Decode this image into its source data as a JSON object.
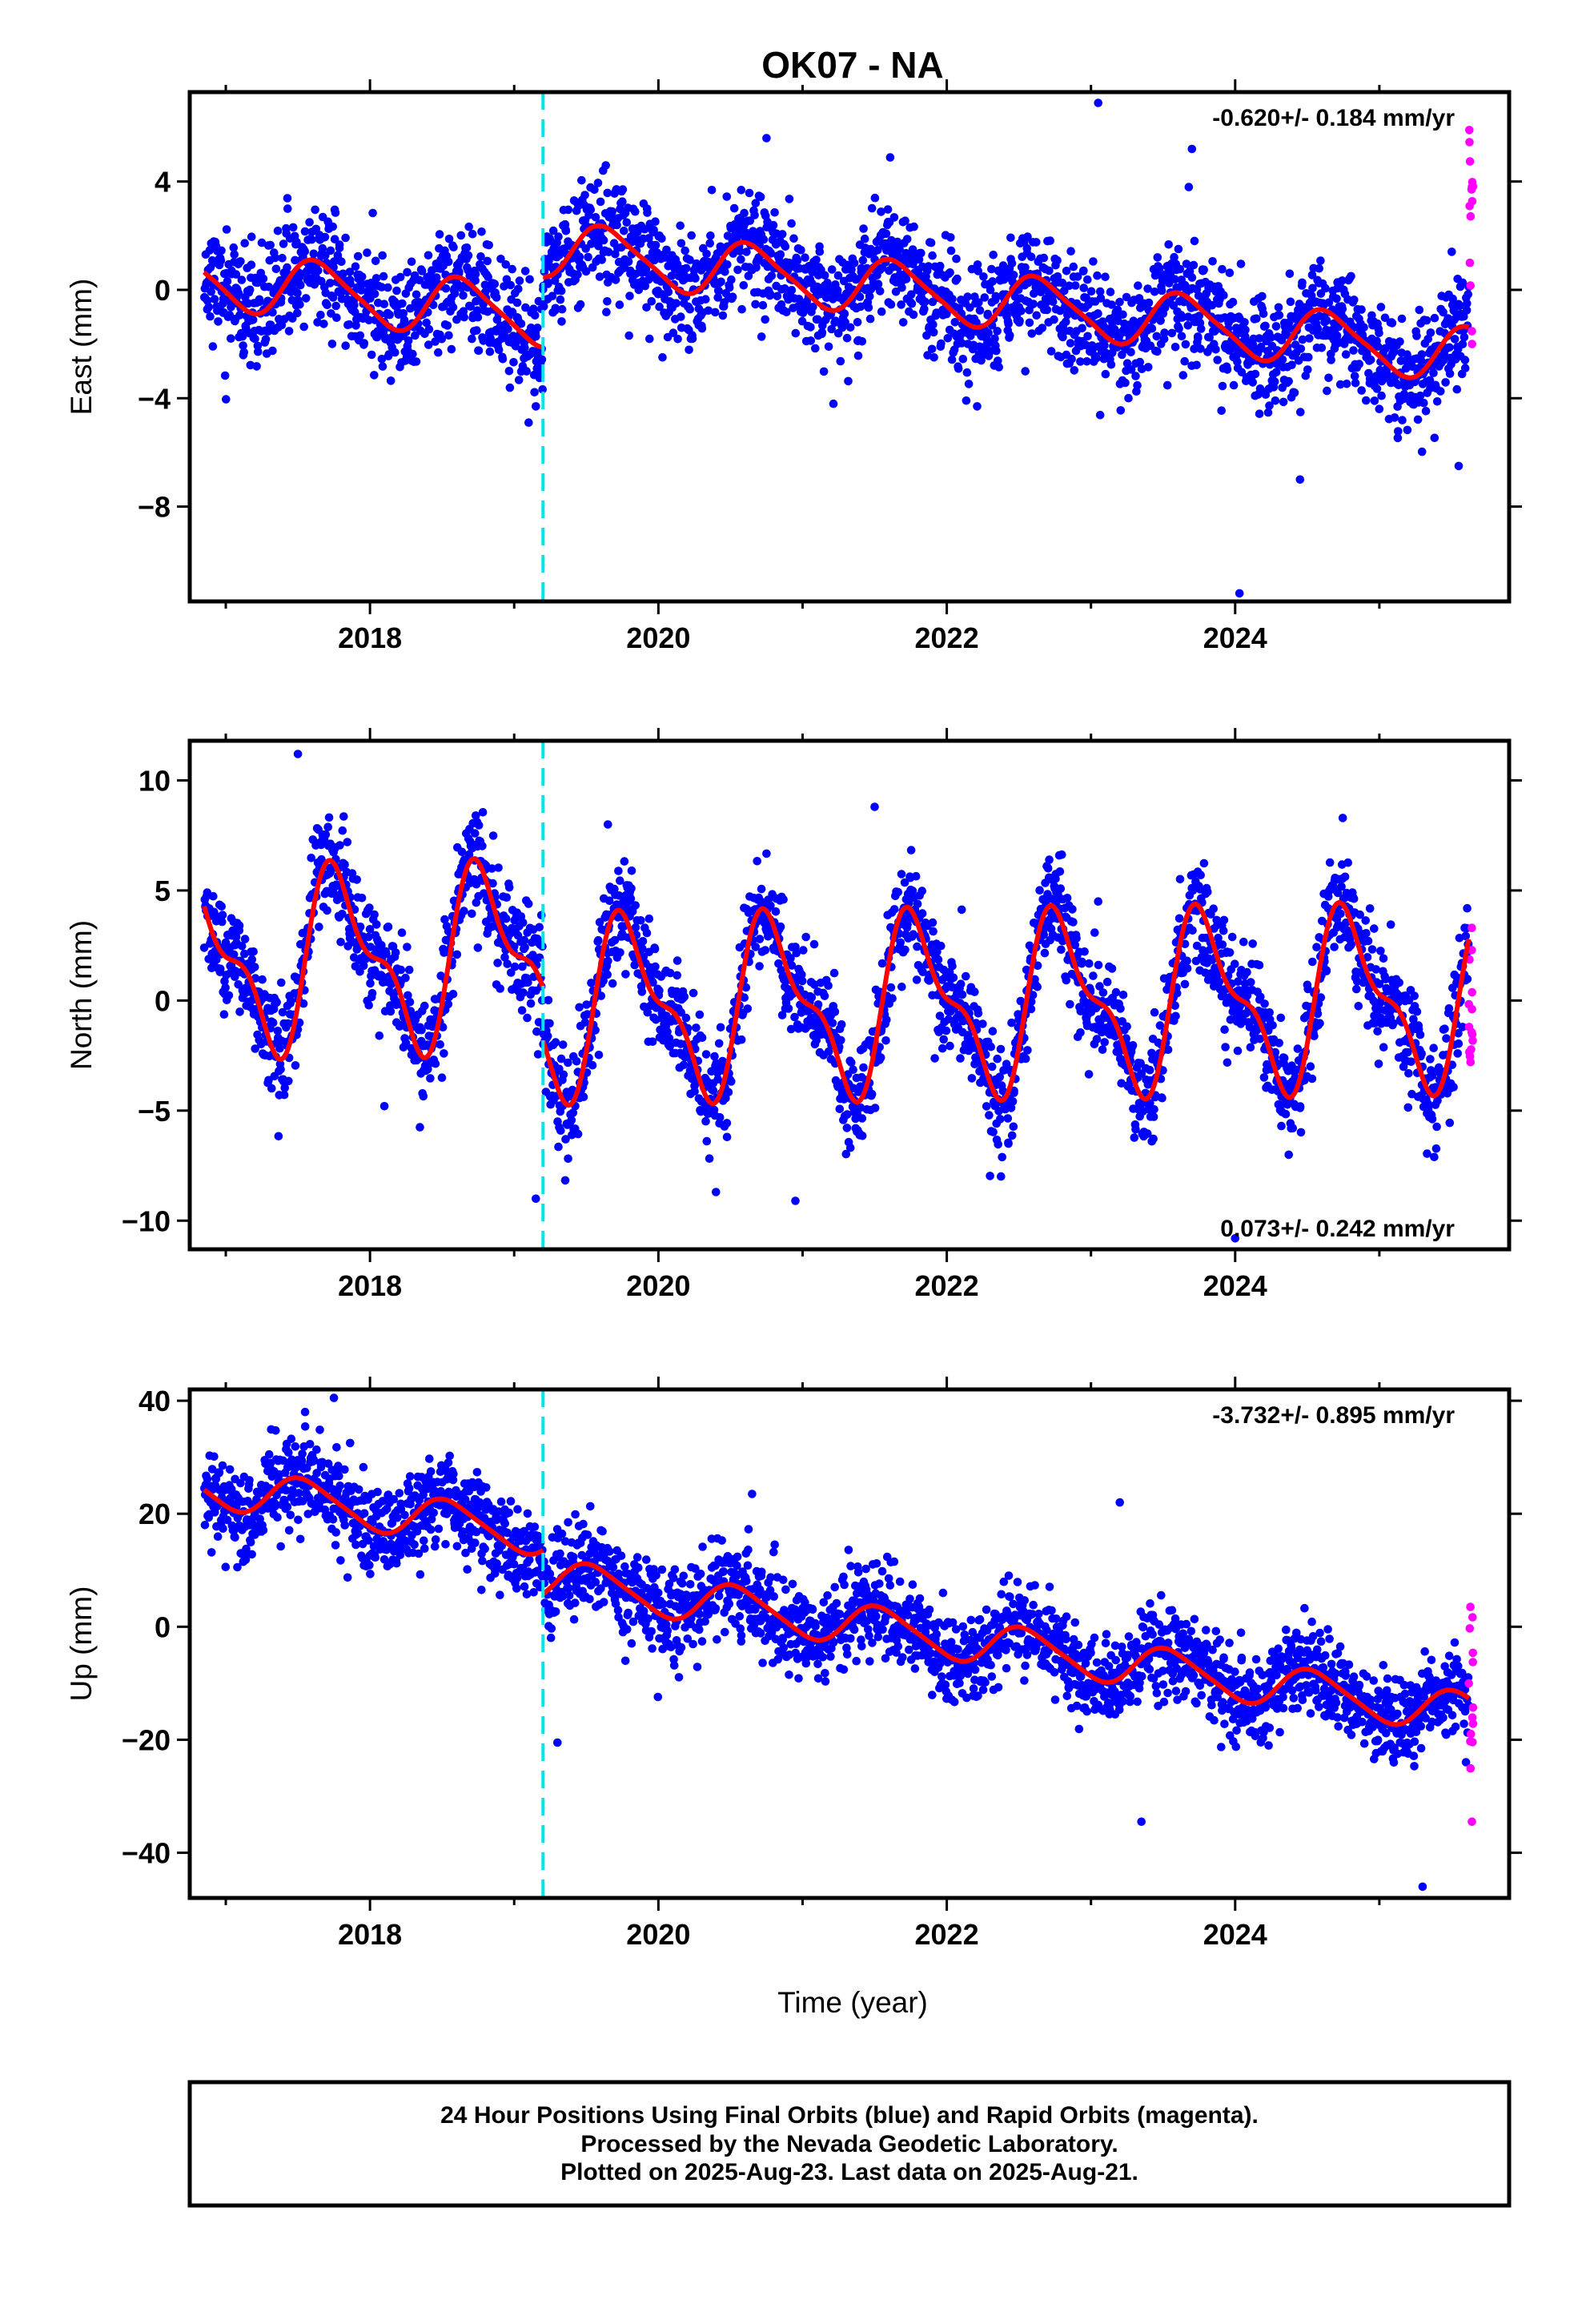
{
  "title": "OK07 - NA",
  "xlabel": "Time (year)",
  "caption": [
    "24 Hour Positions Using Final Orbits (blue) and Rapid Orbits (magenta).",
    "Processed by the Nevada Geodetic Laboratory.",
    "Plotted on 2025-Aug-23. Last data on 2025-Aug-21."
  ],
  "colors": {
    "final_orbits": "#0000ff",
    "rapid_orbits": "#ff00ff",
    "model": "#ff0000",
    "equipment_change": "#00e5ee"
  },
  "chart_data": [
    {
      "type": "scatter",
      "component": "East",
      "ylabel": "East (mm)",
      "rate_text": "-0.620+/- 0.184 mm/yr",
      "rate_position": "top-right",
      "xlim": [
        2016.75,
        2025.9
      ],
      "ylim": [
        -11.5,
        7.3
      ],
      "xticks": [
        2018,
        2020,
        2022,
        2024
      ],
      "yticks": [
        4,
        0,
        -4,
        -8
      ],
      "equipment_change_x": 2019.2,
      "model": {
        "segments": [
          {
            "x0": 2016.85,
            "x1": 2019.2,
            "a": 0.45,
            "b": -0.62,
            "amp": 1.05,
            "amp2": 0.2
          },
          {
            "x0": 2019.2,
            "x1": 2025.62,
            "a": 1.55,
            "b": -0.62,
            "amp": 1.0,
            "amp2": 0.2
          }
        ],
        "phase": 0.4
      },
      "scatter": {
        "count": 2700,
        "sd": 1.05,
        "seed": 11
      },
      "rapid": {
        "x0": 2025.62,
        "x1": 2025.65,
        "ymin": -2.0,
        "ymax": 5.9,
        "count": 14
      },
      "outliers": [
        [
          2023.05,
          6.9
        ],
        [
          2024.03,
          -11.2
        ],
        [
          2019.1,
          -4.9
        ],
        [
          2019.15,
          -4.3
        ],
        [
          2020.75,
          5.6
        ],
        [
          2023.7,
          5.2
        ],
        [
          2025.55,
          -6.5
        ],
        [
          2024.45,
          -7.0
        ]
      ]
    },
    {
      "type": "scatter",
      "component": "North",
      "ylabel": "North (mm)",
      "rate_text": "0.073+/- 0.242 mm/yr",
      "rate_position": "bottom-right",
      "xlim": [
        2016.75,
        2025.9
      ],
      "ylim": [
        -11.3,
        11.8
      ],
      "xticks": [
        2018,
        2020,
        2022,
        2024
      ],
      "yticks": [
        10,
        5,
        0,
        -5,
        -10
      ],
      "equipment_change_x": 2019.2,
      "model": {
        "segments": [
          {
            "x0": 2016.85,
            "x1": 2019.2,
            "a": 1.8,
            "b": 0.07,
            "amp": 3.6,
            "amp2": 1.6
          },
          {
            "x0": 2019.2,
            "x1": 2025.62,
            "a": -0.35,
            "b": 0.07,
            "amp": 3.6,
            "amp2": 1.5
          }
        ],
        "phase": 0.55
      },
      "scatter": {
        "count": 2700,
        "sd": 1.2,
        "seed": 23
      },
      "rapid": {
        "x0": 2025.62,
        "x1": 2025.65,
        "ymin": -2.8,
        "ymax": 3.3,
        "count": 14
      },
      "outliers": [
        [
          2017.5,
          11.2
        ],
        [
          2019.15,
          -9.0
        ],
        [
          2024.0,
          -10.8
        ],
        [
          2020.95,
          -9.1
        ],
        [
          2018.1,
          -4.8
        ],
        [
          2021.5,
          8.8
        ],
        [
          2019.65,
          8.0
        ],
        [
          2023.05,
          4.5
        ]
      ]
    },
    {
      "type": "scatter",
      "component": "Up",
      "ylabel": "Up (mm)",
      "rate_text": "-3.732+/- 0.895 mm/yr",
      "rate_position": "top-right",
      "xlim": [
        2016.75,
        2025.9
      ],
      "ylim": [
        -48,
        42
      ],
      "xticks": [
        2018,
        2020,
        2022,
        2024
      ],
      "yticks": [
        40,
        20,
        0,
        -20,
        -40
      ],
      "equipment_change_x": 2019.2,
      "model": {
        "segments": [
          {
            "x0": 2016.85,
            "x1": 2019.2,
            "a": 25.0,
            "b": -3.73,
            "amp": 3.6,
            "amp2": 0.6
          },
          {
            "x0": 2019.2,
            "x1": 2025.62,
            "a": 8.5,
            "b": -3.73,
            "amp": 3.6,
            "amp2": 0.6
          }
        ],
        "phase": 0.3
      },
      "scatter": {
        "count": 2700,
        "sd": 4.0,
        "seed": 37
      },
      "rapid": {
        "x0": 2025.62,
        "x1": 2025.65,
        "ymin": -34.5,
        "ymax": 3.5,
        "count": 14
      },
      "outliers": [
        [
          2017.75,
          40.5
        ],
        [
          2023.2,
          22.0
        ],
        [
          2025.3,
          -46.0
        ],
        [
          2023.35,
          -34.5
        ],
        [
          2020.65,
          23.5
        ],
        [
          2019.3,
          -20.5
        ],
        [
          2017.55,
          38.0
        ]
      ]
    }
  ]
}
